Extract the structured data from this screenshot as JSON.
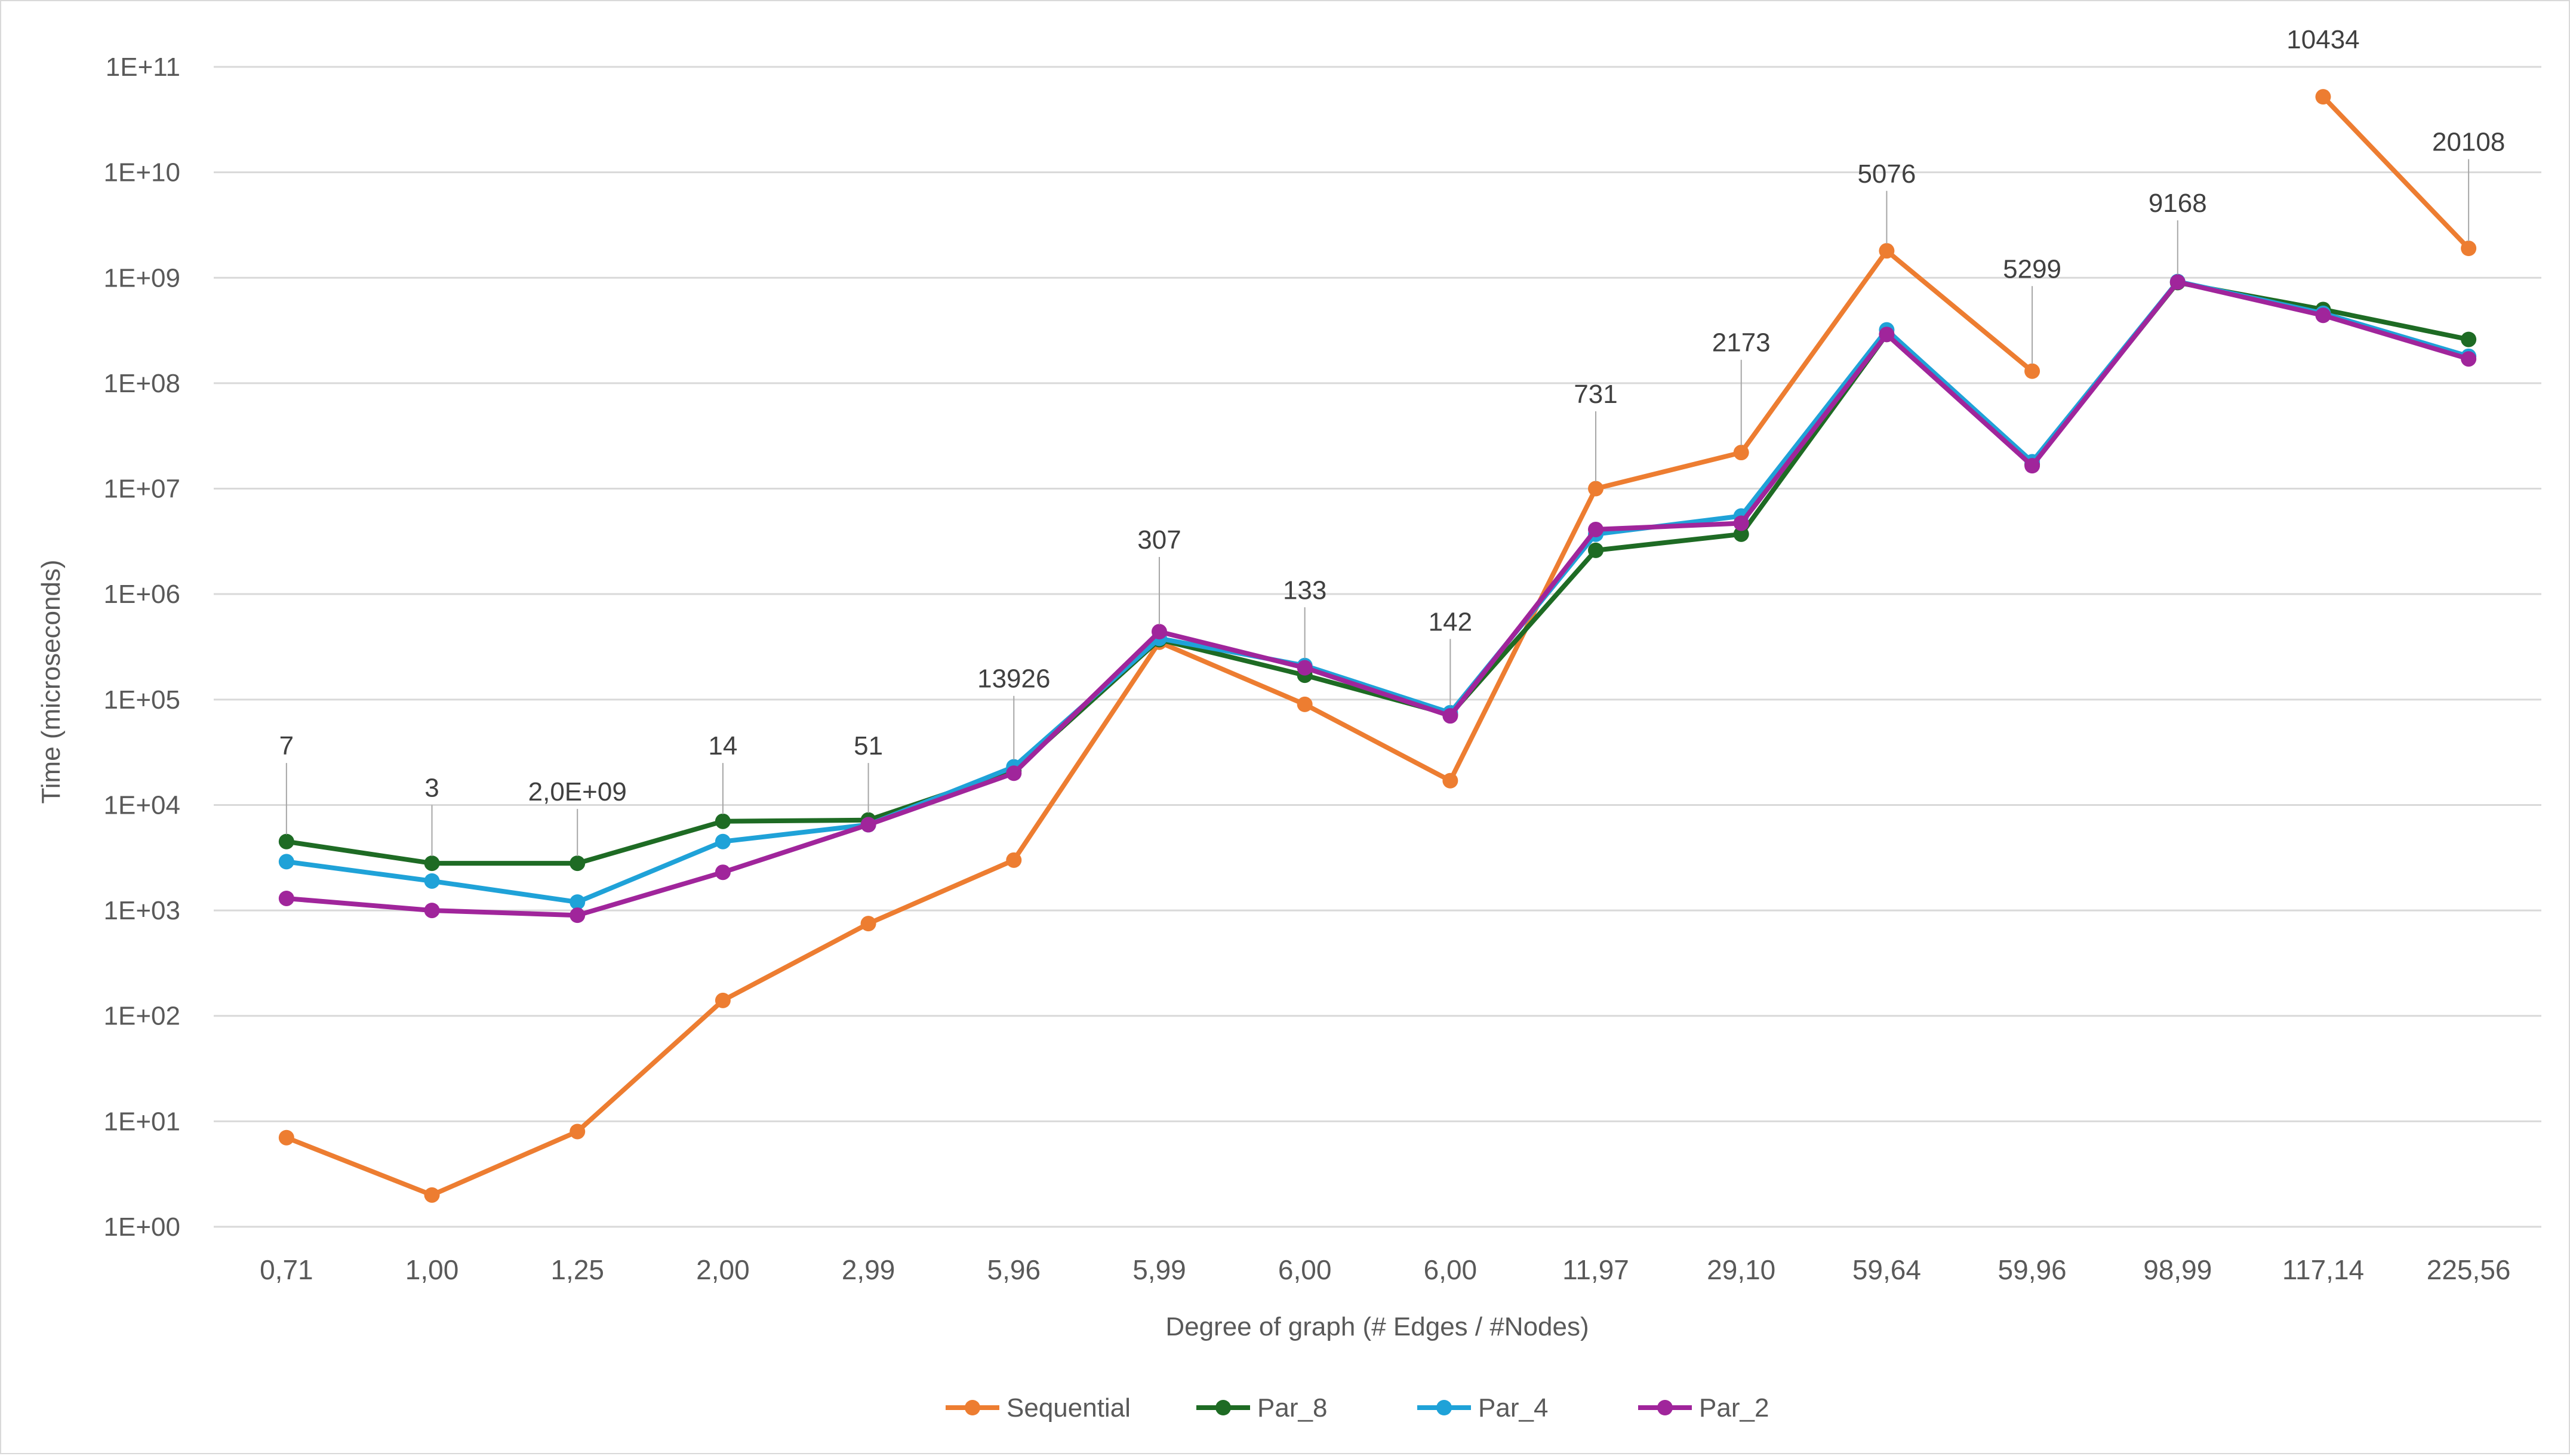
{
  "chart_data": {
    "type": "line",
    "title": "",
    "xlabel": "Degree of graph (# Edges / #Nodes)",
    "ylabel": "Time (microseconds)",
    "yscale": "log",
    "ylim": [
      1,
      100000000000
    ],
    "yticks": [
      "1E+00",
      "1E+01",
      "1E+02",
      "1E+03",
      "1E+04",
      "1E+05",
      "1E+06",
      "1E+07",
      "1E+08",
      "1E+09",
      "1E+10",
      "1E+11"
    ],
    "categories": [
      "0,71",
      "1,00",
      "1,25",
      "2,00",
      "2,99",
      "5,96",
      "5,99",
      "6,00",
      "6,00",
      "11,97",
      "29,10",
      "59,64",
      "59,96",
      "98,99",
      "117,14",
      "225,56"
    ],
    "grid": true,
    "legend_position": "bottom",
    "series": [
      {
        "name": "Sequential",
        "color": "#ED7D31",
        "values": [
          7,
          2,
          8,
          140,
          750,
          3000,
          350000,
          90000,
          17000,
          10000000,
          22000000,
          1800000000,
          130000000,
          null,
          52000000000,
          1900000000
        ]
      },
      {
        "name": "Par_8",
        "color": "#1E6B24",
        "values": [
          4500,
          2800,
          2800,
          7000,
          7200,
          21000,
          370000,
          170000,
          72000,
          2600000,
          3700000,
          290000000,
          17000000,
          900000000,
          500000000,
          260000000
        ]
      },
      {
        "name": "Par_4",
        "color": "#1FA2D8",
        "values": [
          2900,
          1900,
          1200,
          4500,
          6500,
          23000,
          380000,
          210000,
          75000,
          3700000,
          5500000,
          320000000,
          18000000,
          920000000,
          460000000,
          180000000
        ]
      },
      {
        "name": "Par_2",
        "color": "#A0259B",
        "values": [
          1300,
          1000,
          900,
          2300,
          6500,
          20000,
          440000,
          200000,
          70000,
          4100000,
          4700000,
          290000000,
          16500000,
          910000000,
          440000000,
          170000000
        ]
      }
    ],
    "annotations": [
      {
        "text": "7",
        "category_index": 0,
        "anchor_value": 4500,
        "label_value": 30000
      },
      {
        "text": "3",
        "category_index": 1,
        "anchor_value": 2800,
        "label_value": 12000
      },
      {
        "text": "2,0E+09",
        "category_index": 2,
        "anchor_value": 2800,
        "label_value": 11000
      },
      {
        "text": "14",
        "category_index": 3,
        "anchor_value": 7000,
        "label_value": 30000
      },
      {
        "text": "51",
        "category_index": 4,
        "anchor_value": 7200,
        "label_value": 30000
      },
      {
        "text": "13926",
        "category_index": 5,
        "anchor_value": 23000,
        "label_value": 130000
      },
      {
        "text": "307",
        "category_index": 6,
        "anchor_value": 440000,
        "label_value": 2700000
      },
      {
        "text": "133",
        "category_index": 7,
        "anchor_value": 210000,
        "label_value": 900000
      },
      {
        "text": "142",
        "category_index": 8,
        "anchor_value": 75000,
        "label_value": 450000
      },
      {
        "text": "731",
        "category_index": 9,
        "anchor_value": 10000000,
        "label_value": 65000000
      },
      {
        "text": "2173",
        "category_index": 10,
        "anchor_value": 22000000,
        "label_value": 200000000
      },
      {
        "text": "5076",
        "category_index": 11,
        "anchor_value": 1800000000,
        "label_value": 8000000000
      },
      {
        "text": "5299",
        "category_index": 12,
        "anchor_value": 130000000,
        "label_value": 1000000000
      },
      {
        "text": "9168",
        "category_index": 13,
        "anchor_value": 920000000,
        "label_value": 4200000000
      },
      {
        "text": "10434",
        "category_index": 14,
        "anchor_value": 52000000000,
        "label_value": 150000000000,
        "no_leader": true
      },
      {
        "text": "20108",
        "category_index": 15,
        "anchor_value": 1900000000,
        "label_value": 16000000000
      }
    ]
  }
}
